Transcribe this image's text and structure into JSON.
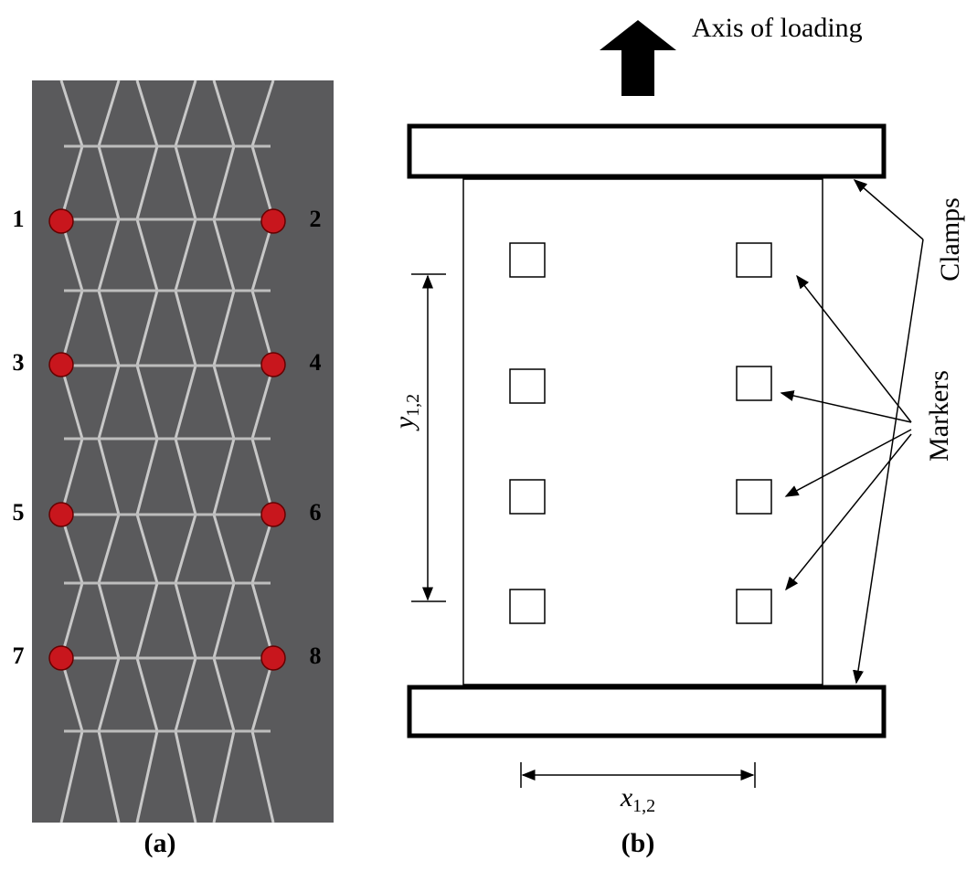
{
  "panel_a": {
    "caption": "(a)",
    "markers": [
      "1",
      "2",
      "3",
      "4",
      "5",
      "6",
      "7",
      "8"
    ]
  },
  "panel_b": {
    "caption": "(b)",
    "load_label": "Axis of loading",
    "clamps_label": "Clamps",
    "markers_label": "Markers",
    "y_dimension": {
      "symbol": "y",
      "subscript": "1,2"
    },
    "x_dimension": {
      "symbol": "x",
      "subscript": "1,2"
    }
  }
}
